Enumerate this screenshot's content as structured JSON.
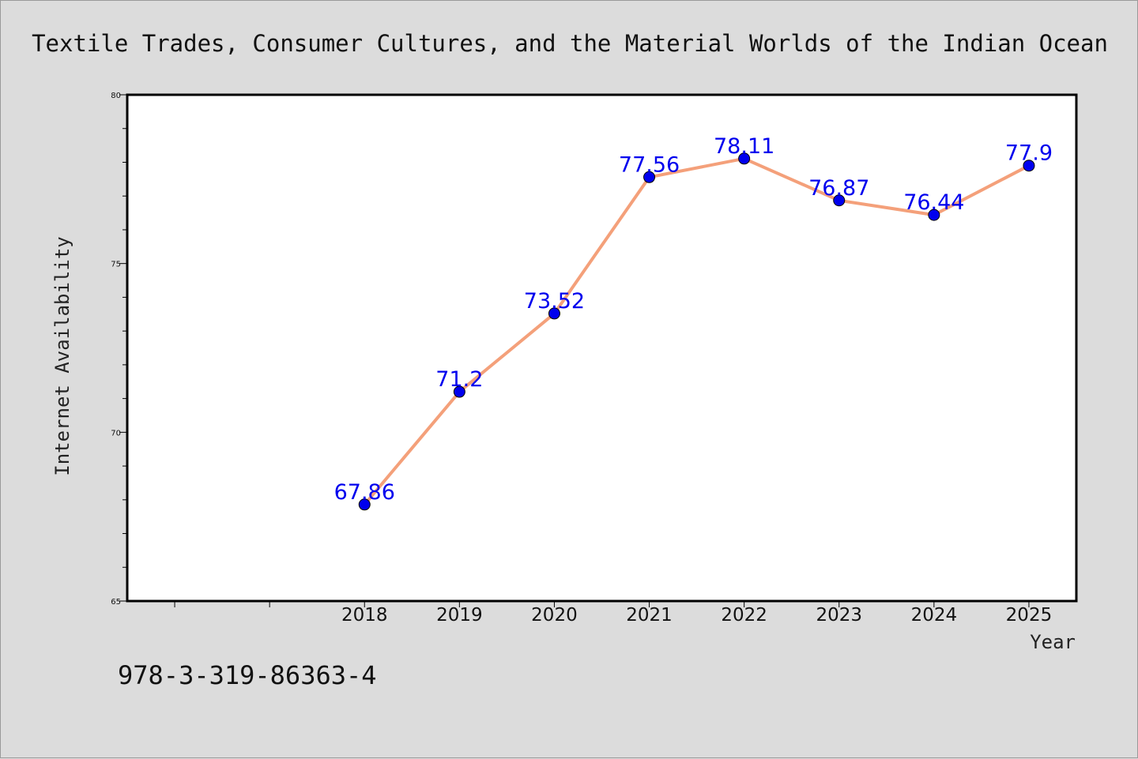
{
  "page": {
    "isbn": "978-3-319-86363-4"
  },
  "colors": {
    "background": "#dcdcdc",
    "plot_background": "#ffffff",
    "line": "#f4a07a",
    "marker": "#0000ee",
    "data_label": "#0000ee"
  },
  "chart_data": {
    "type": "line",
    "title": "Textile Trades, Consumer Cultures, and the Material Worlds of the Indian Ocean",
    "xlabel": "Year",
    "ylabel": "Internet Availability",
    "x": [
      2018,
      2019,
      2020,
      2021,
      2022,
      2023,
      2024,
      2025
    ],
    "x_tick_labels": [
      "2018",
      "2019",
      "2020",
      "2021",
      "2022",
      "2023",
      "2024",
      "2025"
    ],
    "xlim": [
      2015.5,
      2025.5
    ],
    "ylim": [
      65,
      80
    ],
    "y_ticks": [
      65,
      70,
      75,
      80
    ],
    "y_tick_labels": [
      "65",
      "70",
      "75",
      "80"
    ],
    "series": [
      {
        "values": [
          67.86,
          71.2,
          73.52,
          77.56,
          78.11,
          76.87,
          76.44,
          77.9
        ],
        "data_labels": [
          "67.86",
          "71.2",
          "73.52",
          "77.56",
          "78.11",
          "76.87",
          "76.44",
          "77.9"
        ],
        "color": "#f4a07a",
        "marker_color": "#0000ee"
      }
    ],
    "grid": false,
    "legend": "none"
  }
}
